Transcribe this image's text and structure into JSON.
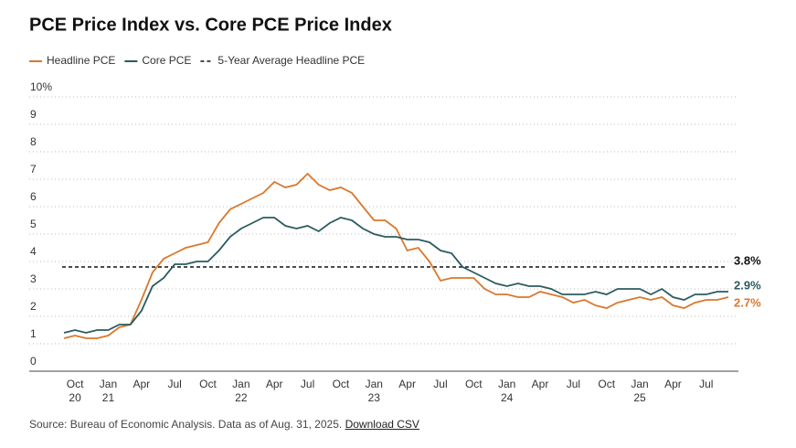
{
  "chart_data": {
    "type": "line",
    "title": "PCE Price Index vs. Core PCE Price Index",
    "categories": [
      null,
      "Oct\n20",
      null,
      null,
      "Jan\n21",
      null,
      null,
      "Apr",
      null,
      null,
      "Jul",
      null,
      null,
      "Oct",
      null,
      null,
      "Jan\n22",
      null,
      null,
      "Apr",
      null,
      null,
      "Jul",
      null,
      null,
      "Oct",
      null,
      null,
      "Jan\n23",
      null,
      null,
      "Apr",
      null,
      null,
      "Jul",
      null,
      null,
      "Oct",
      null,
      null,
      "Jan\n24",
      null,
      null,
      "Apr",
      null,
      null,
      "Jul",
      null,
      null,
      "Oct",
      null,
      null,
      "Jan\n25",
      null,
      null,
      "Apr",
      null,
      null,
      "Jul",
      null,
      null
    ],
    "series": [
      {
        "name": "Headline PCE",
        "color": "#d9782d",
        "end_label": "2.7%",
        "values": [
          1.2,
          1.3,
          1.2,
          1.2,
          1.3,
          1.6,
          1.7,
          2.6,
          3.6,
          4.1,
          4.3,
          4.5,
          4.6,
          4.7,
          5.4,
          5.9,
          6.1,
          6.3,
          6.5,
          6.9,
          6.7,
          6.8,
          7.2,
          6.8,
          6.6,
          6.7,
          6.5,
          6.0,
          5.5,
          5.5,
          5.2,
          4.4,
          4.5,
          4.0,
          3.3,
          3.4,
          3.4,
          3.4,
          3.0,
          2.8,
          2.8,
          2.7,
          2.7,
          2.9,
          2.8,
          2.7,
          2.5,
          2.6,
          2.4,
          2.3,
          2.5,
          2.6,
          2.7,
          2.6,
          2.7,
          2.4,
          2.3,
          2.5,
          2.6,
          2.6,
          2.7
        ]
      },
      {
        "name": "Core PCE",
        "color": "#2b5b5e",
        "end_label": "2.9%",
        "values": [
          1.4,
          1.5,
          1.4,
          1.5,
          1.5,
          1.7,
          1.7,
          2.2,
          3.1,
          3.4,
          3.9,
          3.9,
          4.0,
          4.0,
          4.4,
          4.9,
          5.2,
          5.4,
          5.6,
          5.6,
          5.3,
          5.2,
          5.3,
          5.1,
          5.4,
          5.6,
          5.5,
          5.2,
          5.0,
          4.9,
          4.9,
          4.8,
          4.8,
          4.7,
          4.4,
          4.3,
          3.8,
          3.6,
          3.4,
          3.2,
          3.1,
          3.2,
          3.1,
          3.1,
          3.0,
          2.8,
          2.8,
          2.8,
          2.9,
          2.8,
          3.0,
          3.0,
          3.0,
          2.8,
          3.0,
          2.7,
          2.6,
          2.8,
          2.8,
          2.9,
          2.9
        ]
      }
    ],
    "reference": {
      "name": "5-Year Average Headline PCE",
      "value": 3.8,
      "label": "3.8%",
      "color": "#111111"
    },
    "ylim": [
      0,
      10
    ],
    "yticks": [
      0,
      1,
      2,
      3,
      4,
      5,
      6,
      7,
      8,
      9,
      {
        "value": 10,
        "label": "10%"
      }
    ],
    "grid": true,
    "source": "Source: Bureau of Economic Analysis. Data as of Aug. 31, 2025.",
    "source_link": "Download CSV"
  }
}
